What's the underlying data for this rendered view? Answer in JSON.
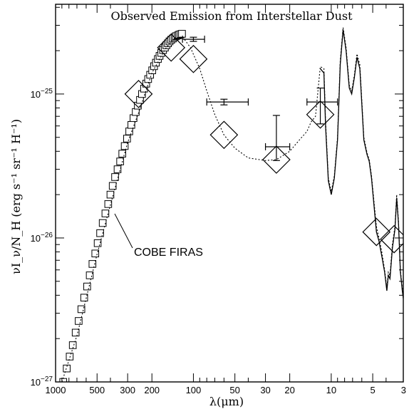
{
  "chart_data": {
    "type": "scatter",
    "title": "Observed Emission from Interstellar Dust",
    "xlabel": "λ(μm)",
    "ylabel": "νI_ν/N_H (erg s⁻¹ sr⁻¹ H⁻¹)",
    "x_scale": "log-reversed",
    "y_scale": "log",
    "xlim": [
      1000,
      3
    ],
    "ylim": [
      1e-27,
      4.2e-25
    ],
    "x_ticks": [
      {
        "v": 1000,
        "label": "1000"
      },
      {
        "v": 500,
        "label": "500"
      },
      {
        "v": 300,
        "label": "300"
      },
      {
        "v": 200,
        "label": "200"
      },
      {
        "v": 100,
        "label": "100"
      },
      {
        "v": 50,
        "label": "50"
      },
      {
        "v": 30,
        "label": "30"
      },
      {
        "v": 20,
        "label": "20"
      },
      {
        "v": 10,
        "label": "10"
      },
      {
        "v": 5,
        "label": "5"
      },
      {
        "v": 3,
        "label": "3"
      }
    ],
    "y_ticks": [
      {
        "v": 1e-27,
        "base": "10",
        "exp": "−27"
      },
      {
        "v": 1e-26,
        "base": "10",
        "exp": "−26"
      },
      {
        "v": 1e-25,
        "base": "10",
        "exp": "−25"
      }
    ],
    "annotation": {
      "text": "COBE FIRAS",
      "points_to": [
        390,
        1.6e-26
      ]
    },
    "series": [
      {
        "kind": "squares",
        "points": [
          [
            880,
            1e-27
          ],
          [
            830,
            1.24e-27
          ],
          [
            790,
            1.5e-27
          ],
          [
            750,
            1.8e-27
          ],
          [
            715,
            2.2e-27
          ],
          [
            680,
            2.65e-27
          ],
          [
            650,
            3.2e-27
          ],
          [
            620,
            3.85e-27
          ],
          [
            590,
            4.6e-27
          ],
          [
            565,
            5.5e-27
          ],
          [
            540,
            6.6e-27
          ],
          [
            515,
            7.8e-27
          ],
          [
            495,
            9.2e-27
          ],
          [
            475,
            1.08e-26
          ],
          [
            455,
            1.27e-26
          ],
          [
            435,
            1.48e-26
          ],
          [
            415,
            1.72e-26
          ],
          [
            400,
            2e-26
          ],
          [
            385,
            2.3e-26
          ],
          [
            370,
            2.65e-26
          ],
          [
            355,
            3e-26
          ],
          [
            340,
            3.4e-26
          ],
          [
            328,
            3.85e-26
          ],
          [
            315,
            4.35e-26
          ],
          [
            303,
            4.9e-26
          ],
          [
            292,
            5.5e-26
          ],
          [
            282,
            6.1e-26
          ],
          [
            272,
            6.8e-26
          ],
          [
            262,
            7.5e-26
          ],
          [
            253,
            8.3e-26
          ],
          [
            244,
            9.1e-26
          ],
          [
            236,
            1e-25
          ],
          [
            228,
            1.09e-25
          ],
          [
            220,
            1.18e-25
          ],
          [
            213,
            1.27e-25
          ],
          [
            206,
            1.36e-25
          ],
          [
            199,
            1.46e-25
          ],
          [
            193,
            1.56e-25
          ],
          [
            187,
            1.65e-25
          ],
          [
            181,
            1.75e-25
          ],
          [
            176,
            1.84e-25
          ],
          [
            171,
            1.93e-25
          ],
          [
            166,
            2.02e-25
          ],
          [
            161,
            2.1e-25
          ],
          [
            157,
            2.18e-25
          ],
          [
            153,
            2.25e-25
          ],
          [
            149,
            2.32e-25
          ],
          [
            145,
            2.38e-25
          ],
          [
            141,
            2.43e-25
          ],
          [
            137,
            2.48e-25
          ],
          [
            134,
            2.52e-25
          ],
          [
            130,
            2.55e-25
          ],
          [
            127,
            2.58e-25
          ],
          [
            124,
            2.6e-25
          ],
          [
            121,
            2.62e-25
          ]
        ]
      },
      {
        "kind": "diamonds",
        "points": [
          [
            250,
            1e-25
          ],
          [
            145,
            2.1e-25
          ],
          [
            100,
            1.75e-25
          ],
          [
            60,
            5.2e-26
          ],
          [
            25,
            3.5e-26
          ],
          [
            12,
            7.2e-26
          ],
          [
            4.7,
            1.1e-26
          ],
          [
            3.5,
            9.8e-27
          ]
        ]
      },
      {
        "kind": "errorbars",
        "points": [
          {
            "x": 100,
            "y": 2.4e-25,
            "xlo": 120,
            "xhi": 83,
            "ylo": 2.32e-25,
            "yhi": 2.48e-25
          },
          {
            "x": 60,
            "y": 8.8e-26,
            "xlo": 80,
            "xhi": 40,
            "ylo": 8.4e-26,
            "yhi": 9.2e-26
          },
          {
            "x": 25,
            "y": 4.3e-26,
            "xlo": 30,
            "xhi": 20,
            "ylo": 3.45e-26,
            "yhi": 7.1e-26
          },
          {
            "x": 12,
            "y": 8.8e-26,
            "xlo": 15,
            "xhi": 9,
            "ylo": 6.2e-26,
            "yhi": 1.1e-25
          }
        ]
      },
      {
        "kind": "model-dotted",
        "points": [
          [
            900,
            1e-27
          ],
          [
            700,
            2.1e-27
          ],
          [
            500,
            7.7e-27
          ],
          [
            400,
            1.7e-26
          ],
          [
            300,
            4.6e-26
          ],
          [
            250,
            7.4e-26
          ],
          [
            200,
            1.4e-25
          ],
          [
            160,
            2.05e-25
          ],
          [
            140,
            2.4e-25
          ],
          [
            120,
            2.5e-25
          ],
          [
            105,
            2.1e-25
          ],
          [
            90,
            1.5e-25
          ],
          [
            80,
            1.05e-25
          ],
          [
            70,
            7.2e-26
          ],
          [
            60,
            5.2e-26
          ],
          [
            50,
            4.2e-26
          ],
          [
            40,
            3.6e-26
          ],
          [
            30,
            3.45e-26
          ],
          [
            25,
            3.5e-26
          ],
          [
            20,
            4e-26
          ],
          [
            17,
            4.8e-26
          ],
          [
            15,
            5.5e-26
          ],
          [
            14,
            6.4e-26
          ],
          [
            13,
            7e-26
          ],
          [
            12,
            1.55e-25
          ],
          [
            11.3,
            1.5e-25
          ],
          [
            11,
            6.5e-26
          ],
          [
            10.5,
            2.6e-26
          ],
          [
            10,
            2.1e-26
          ],
          [
            9.5,
            2.7e-26
          ],
          [
            9,
            5e-26
          ],
          [
            8.6,
            1.7e-25
          ],
          [
            8.2,
            2.9e-25
          ],
          [
            7.8,
            2.1e-25
          ],
          [
            7.4,
            1.15e-25
          ],
          [
            7.1,
            1.05e-25
          ],
          [
            6.8,
            1.35e-25
          ],
          [
            6.5,
            1.9e-25
          ],
          [
            6.2,
            1.6e-25
          ],
          [
            6.0,
            9e-26
          ],
          [
            5.8,
            5e-26
          ],
          [
            5.5,
            3.9e-26
          ],
          [
            5.3,
            3.5e-26
          ],
          [
            5.1,
            2.7e-26
          ],
          [
            4.9,
            1.8e-26
          ],
          [
            4.7,
            1.2e-26
          ],
          [
            4.5,
            1e-26
          ],
          [
            4.3,
            8e-27
          ],
          [
            4.1,
            6e-27
          ],
          [
            3.95,
            4.5e-27
          ],
          [
            3.85,
            5.8e-27
          ],
          [
            3.75,
            5.5e-27
          ],
          [
            3.6,
            9e-27
          ],
          [
            3.45,
            1.2e-26
          ],
          [
            3.35,
            2e-26
          ],
          [
            3.25,
            1.3e-26
          ],
          [
            3.15,
            6e-27
          ],
          [
            3.05,
            4.5e-27
          ],
          [
            3.0,
            4e-27
          ]
        ]
      },
      {
        "kind": "irs-solid",
        "points": [
          [
            12,
            1.5e-25
          ],
          [
            11.3,
            1.4e-25
          ],
          [
            11,
            6e-26
          ],
          [
            10.5,
            2.5e-26
          ],
          [
            10,
            2e-26
          ],
          [
            9.5,
            2.6e-26
          ],
          [
            9,
            4.8e-26
          ],
          [
            8.6,
            1.6e-25
          ],
          [
            8.2,
            2.8e-25
          ],
          [
            7.8,
            2e-25
          ],
          [
            7.4,
            1.1e-25
          ],
          [
            7.1,
            1e-25
          ],
          [
            6.8,
            1.3e-25
          ],
          [
            6.5,
            1.8e-25
          ],
          [
            6.2,
            1.5e-25
          ],
          [
            6.0,
            8.5e-26
          ],
          [
            5.8,
            4.8e-26
          ],
          [
            5.5,
            3.8e-26
          ],
          [
            5.3,
            3.4e-26
          ],
          [
            5.1,
            2.6e-26
          ],
          [
            4.9,
            1.7e-26
          ],
          [
            4.7,
            1.1e-26
          ],
          [
            4.5,
            9.5e-27
          ],
          [
            4.3,
            7.5e-27
          ],
          [
            4.1,
            5.8e-27
          ],
          [
            3.95,
            4.3e-27
          ],
          [
            3.85,
            5.5e-27
          ],
          [
            3.75,
            5.2e-27
          ],
          [
            3.6,
            8.5e-27
          ],
          [
            3.45,
            1.15e-26
          ],
          [
            3.35,
            1.9e-26
          ],
          [
            3.25,
            1.25e-26
          ],
          [
            3.15,
            5.8e-27
          ],
          [
            3.05,
            4.3e-27
          ],
          [
            3.0,
            3.8e-27
          ]
        ]
      }
    ]
  }
}
